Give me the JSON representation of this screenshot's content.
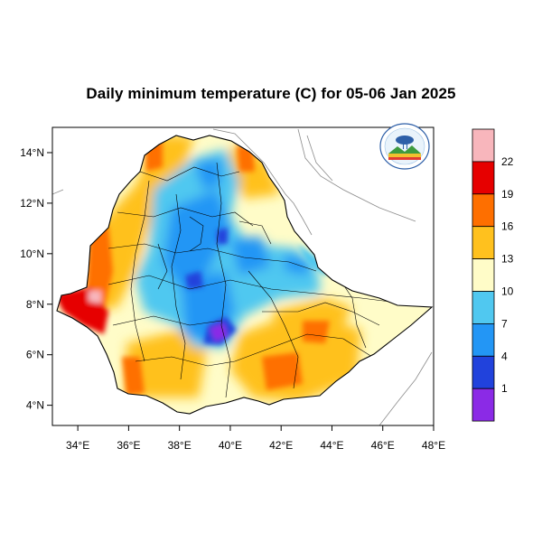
{
  "title": "Daily minimum temperature (C) for 05-06 Jan 2025",
  "map": {
    "lon_range": [
      33,
      48
    ],
    "lat_range": [
      3.2,
      15
    ],
    "x_ticks": [
      {
        "value": 34,
        "label": "34°E"
      },
      {
        "value": 36,
        "label": "36°E"
      },
      {
        "value": 38,
        "label": "38°E"
      },
      {
        "value": 40,
        "label": "40°E"
      },
      {
        "value": 42,
        "label": "42°E"
      },
      {
        "value": 44,
        "label": "44°E"
      },
      {
        "value": 46,
        "label": "46°E"
      },
      {
        "value": 48,
        "label": "48°E"
      }
    ],
    "y_ticks": [
      {
        "value": 14,
        "label": "14°N"
      },
      {
        "value": 12,
        "label": "12°N"
      },
      {
        "value": 10,
        "label": "10°N"
      },
      {
        "value": 8,
        "label": "8°N"
      },
      {
        "value": 6,
        "label": "6°N"
      },
      {
        "value": 4,
        "label": "4°N"
      }
    ],
    "background": "#ffffff",
    "border_color": "#000000",
    "neighbor_line_color": "#8c8c8c"
  },
  "colorbar": {
    "bins": [
      {
        "color": "#f8b6bc",
        "label": ""
      },
      {
        "color": "#e60000",
        "label": "22"
      },
      {
        "color": "#fe6f00",
        "label": "19"
      },
      {
        "color": "#ffc11e",
        "label": "16"
      },
      {
        "color": "#fffcc8",
        "label": "13"
      },
      {
        "color": "#50c8f0",
        "label": "10"
      },
      {
        "color": "#2396f5",
        "label": "7"
      },
      {
        "color": "#2142dc",
        "label": "4"
      },
      {
        "color": "#8b2ae6",
        "label": "1"
      }
    ]
  },
  "logo": {
    "icon": "ethiopian-meteorology-institute-logo"
  }
}
